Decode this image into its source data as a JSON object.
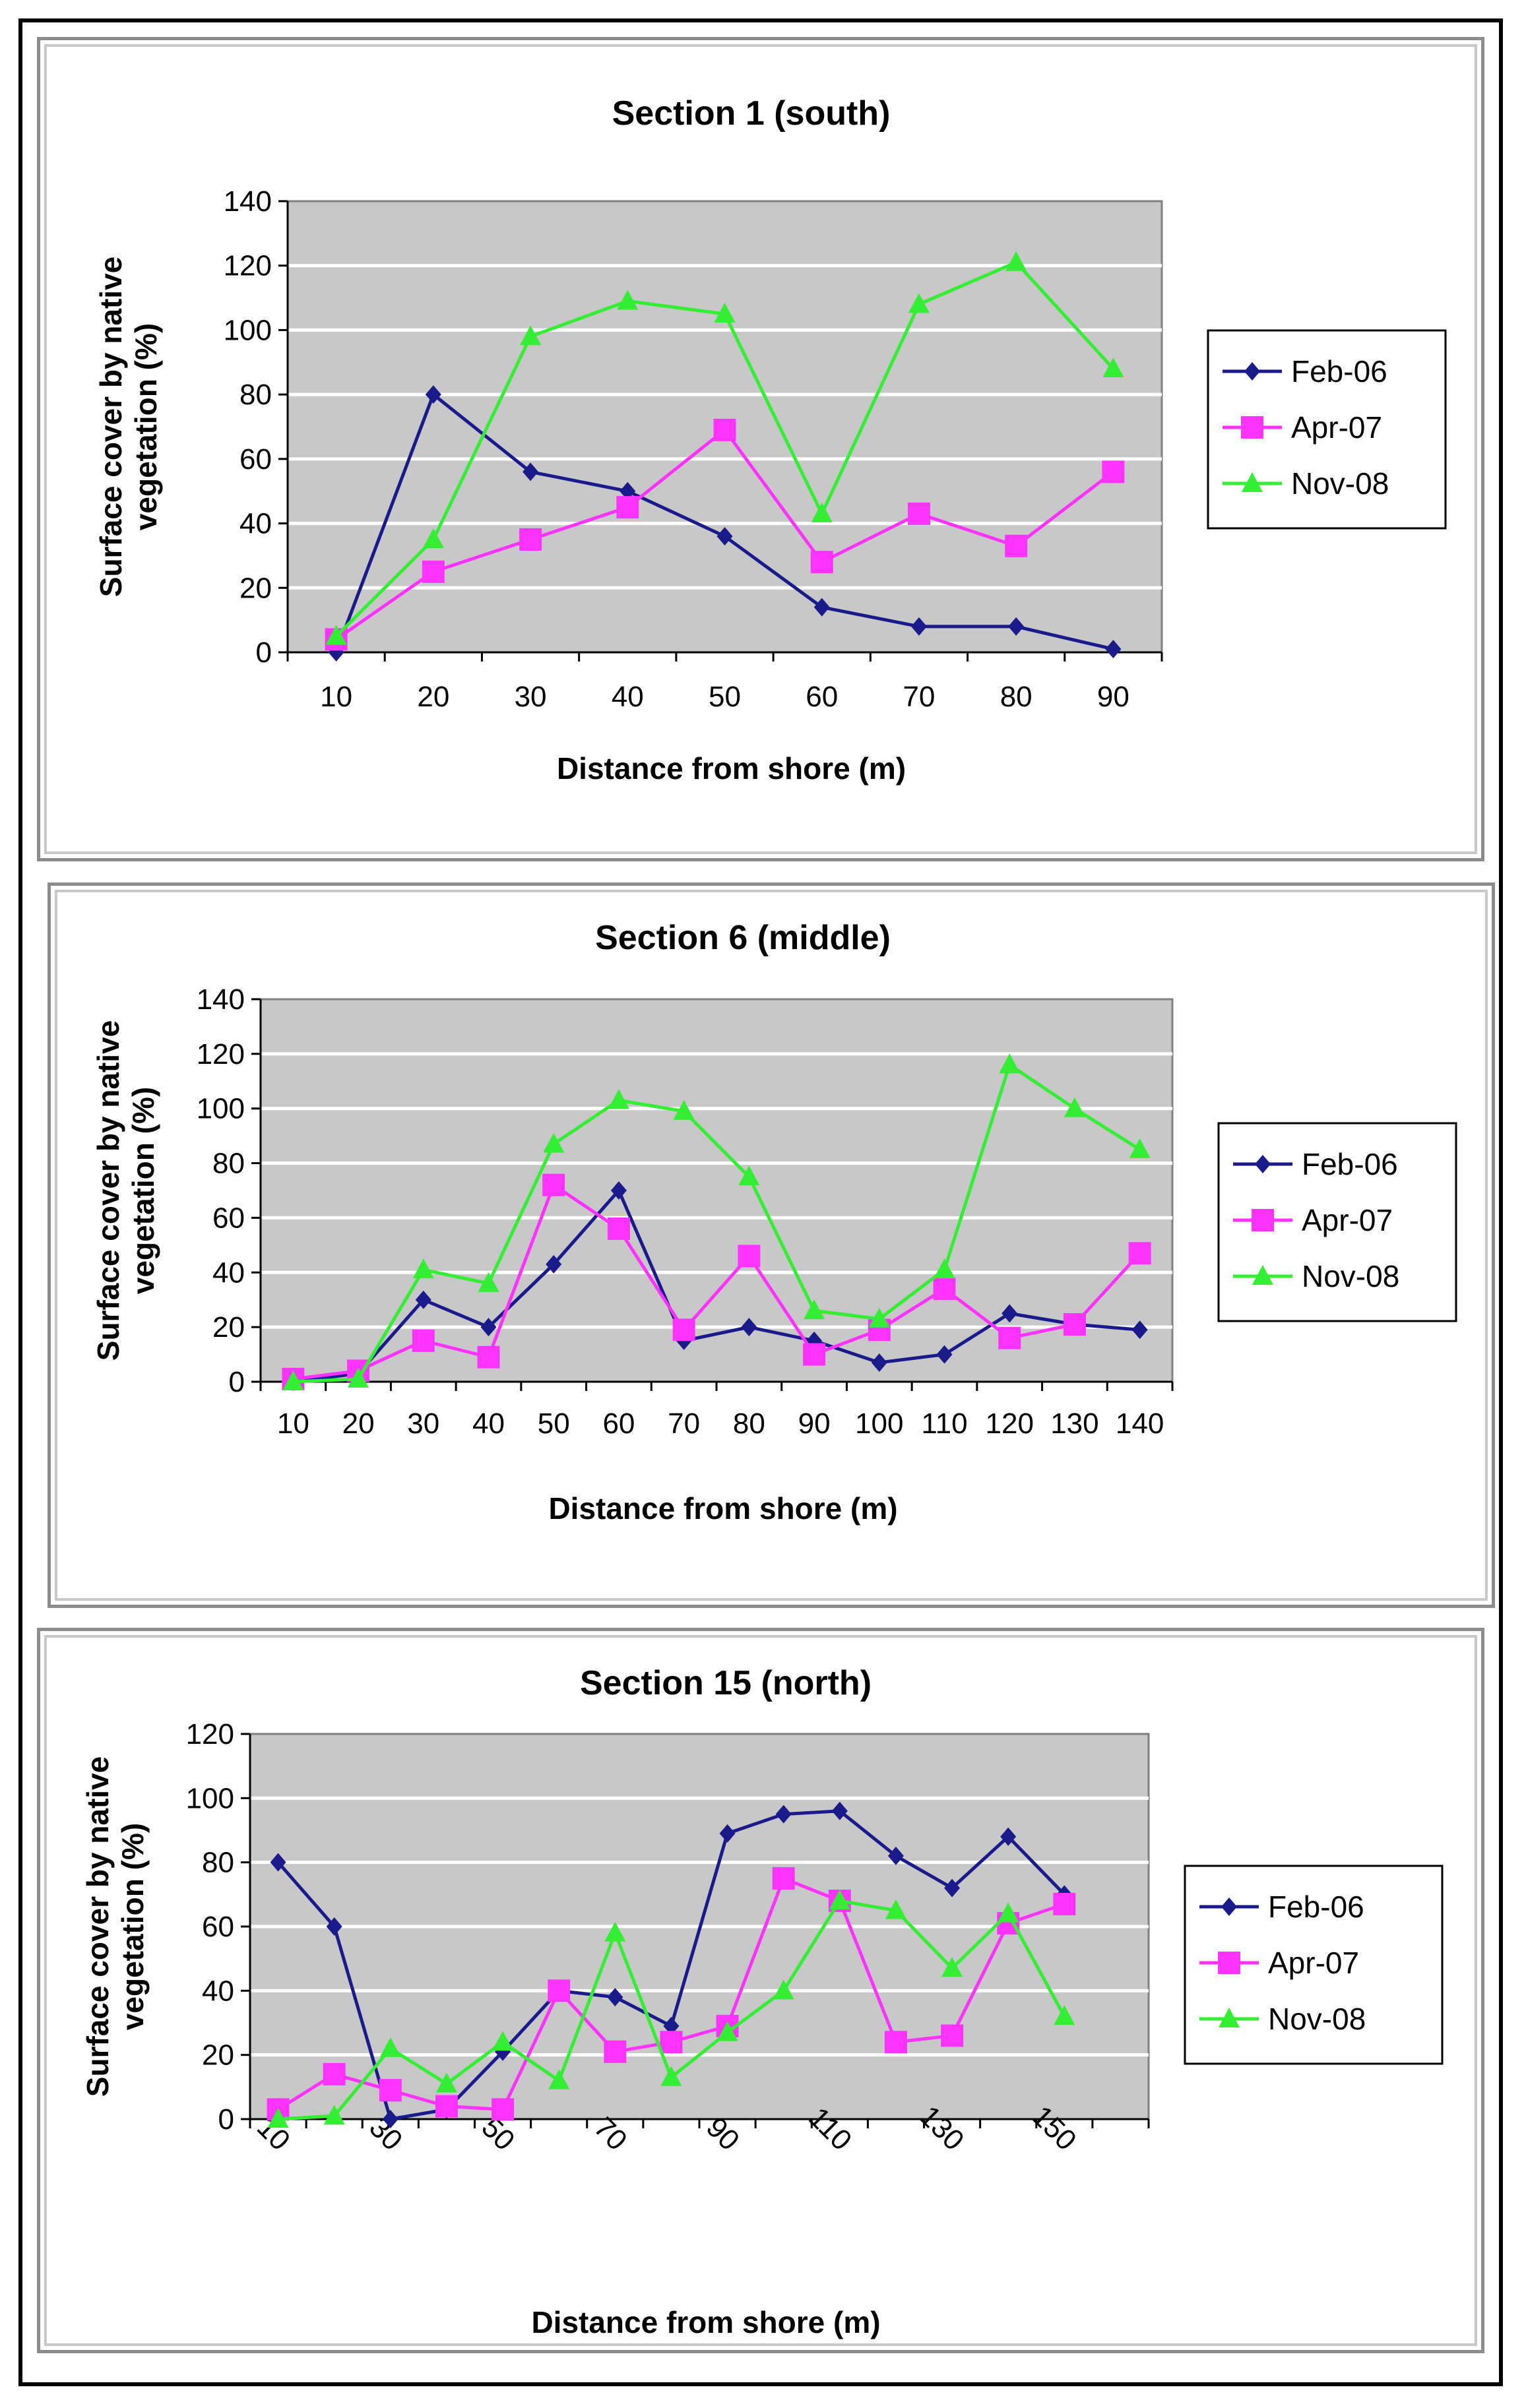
{
  "colors": {
    "Feb-06": "#1a1a8a",
    "Apr-07": "#ff33ff",
    "Nov-08": "#33ee33",
    "plot_bg": "#c8c8c8",
    "grid": "#ffffff"
  },
  "chart_data": [
    {
      "type": "line",
      "title": "Section 1 (south)",
      "xlabel": "Distance from shore (m)",
      "ylabel": "Surface cover by native vegetation (%)",
      "ylim": [
        0,
        140
      ],
      "ystep": 20,
      "x": [
        10,
        20,
        30,
        40,
        50,
        60,
        70,
        80,
        90
      ],
      "xticks": [
        "10",
        "20",
        "30",
        "40",
        "50",
        "60",
        "70",
        "80",
        "90"
      ],
      "xtick_rotated": false,
      "series": [
        {
          "name": "Feb-06",
          "marker": "diamond",
          "values": [
            0,
            80,
            56,
            50,
            36,
            14,
            8,
            8,
            1
          ]
        },
        {
          "name": "Apr-07",
          "marker": "square",
          "values": [
            4,
            25,
            35,
            45,
            69,
            28,
            43,
            33,
            56
          ]
        },
        {
          "name": "Nov-08",
          "marker": "triangle",
          "values": [
            5,
            35,
            98,
            109,
            105,
            43,
            108,
            121,
            88
          ]
        }
      ]
    },
    {
      "type": "line",
      "title": "Section 6 (middle)",
      "xlabel": "Distance from shore (m)",
      "ylabel": "Surface cover by native vegetation (%)",
      "ylim": [
        0,
        140
      ],
      "ystep": 20,
      "x": [
        10,
        20,
        30,
        40,
        50,
        60,
        70,
        80,
        90,
        100,
        110,
        120,
        130,
        140
      ],
      "xticks": [
        "10",
        "20",
        "30",
        "40",
        "50",
        "60",
        "70",
        "80",
        "90",
        "100",
        "110",
        "120",
        "130",
        "140"
      ],
      "xtick_rotated": false,
      "series": [
        {
          "name": "Feb-06",
          "marker": "diamond",
          "values": [
            0,
            3,
            30,
            20,
            43,
            70,
            15,
            20,
            15,
            7,
            10,
            25,
            21,
            19
          ]
        },
        {
          "name": "Apr-07",
          "marker": "square",
          "values": [
            1,
            4,
            15,
            9,
            72,
            56,
            19,
            46,
            10,
            19,
            34,
            16,
            21,
            47
          ]
        },
        {
          "name": "Nov-08",
          "marker": "triangle",
          "values": [
            0,
            1,
            41,
            36,
            87,
            103,
            99,
            75,
            26,
            23,
            41,
            116,
            100,
            85
          ]
        }
      ]
    },
    {
      "type": "line",
      "title": "Section 15 (north)",
      "xlabel": "Distance from shore (m)",
      "ylabel": "Surface cover by native vegetation (%)",
      "ylim": [
        0,
        120
      ],
      "ystep": 20,
      "x": [
        10,
        20,
        30,
        40,
        50,
        60,
        70,
        80,
        90,
        100,
        110,
        120,
        130,
        140,
        150,
        160
      ],
      "xticks": [
        "10",
        "",
        "30",
        "",
        "50",
        "",
        "70",
        "",
        "90",
        "",
        "110",
        "",
        "130",
        "",
        "150",
        ""
      ],
      "xtick_rotated": true,
      "series": [
        {
          "name": "Feb-06",
          "marker": "diamond",
          "values": [
            80,
            60,
            0,
            3,
            21,
            40,
            38,
            29,
            89,
            95,
            96,
            82,
            72,
            88,
            70,
            null
          ]
        },
        {
          "name": "Apr-07",
          "marker": "square",
          "values": [
            3,
            14,
            9,
            4,
            3,
            40,
            21,
            24,
            29,
            75,
            68,
            24,
            26,
            61,
            67,
            null
          ]
        },
        {
          "name": "Nov-08",
          "marker": "triangle",
          "values": [
            0,
            1,
            22,
            11,
            24,
            12,
            58,
            13,
            27,
            40,
            68,
            65,
            47,
            64,
            32,
            null
          ]
        }
      ]
    }
  ]
}
